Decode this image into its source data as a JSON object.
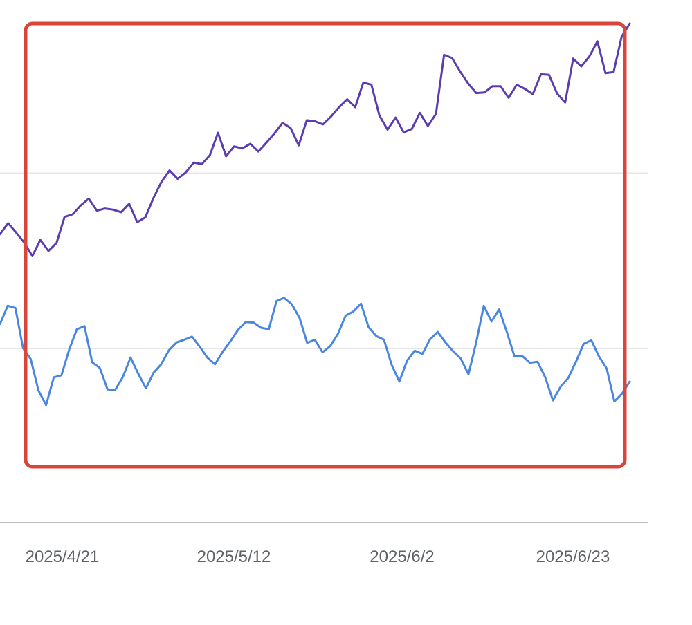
{
  "chart_data": {
    "type": "line",
    "title": "",
    "xlabel": "",
    "ylabel": "",
    "x_tick_labels": [
      "2025/4/21",
      "2025/5/12",
      "2025/6/2",
      "2025/6/23"
    ],
    "grid": true,
    "legend": "none",
    "series": [
      {
        "color": "#5b3db0",
        "values": [
          0.552,
          0.573,
          0.555,
          0.536,
          0.51,
          0.541,
          0.52,
          0.535,
          0.585,
          0.59,
          0.607,
          0.62,
          0.597,
          0.601,
          0.599,
          0.594,
          0.61,
          0.575,
          0.584,
          0.621,
          0.652,
          0.674,
          0.658,
          0.67,
          0.689,
          0.686,
          0.703,
          0.746,
          0.701,
          0.72,
          0.716,
          0.725,
          0.71,
          0.727,
          0.745,
          0.765,
          0.755,
          0.722,
          0.77,
          0.768,
          0.762,
          0.777,
          0.795,
          0.81,
          0.795,
          0.842,
          0.838,
          0.779,
          0.752,
          0.775,
          0.747,
          0.753,
          0.784,
          0.759,
          0.782,
          0.895,
          0.889,
          0.863,
          0.84,
          0.822,
          0.823,
          0.835,
          0.835,
          0.813,
          0.838,
          0.83,
          0.82,
          0.858,
          0.857,
          0.821,
          0.804,
          0.888,
          0.873,
          0.892,
          0.921,
          0.86,
          0.862,
          0.93,
          0.955
        ]
      },
      {
        "color": "#4a86e0",
        "values": [
          0.38,
          0.415,
          0.411,
          0.334,
          0.313,
          0.253,
          0.225,
          0.278,
          0.282,
          0.331,
          0.37,
          0.376,
          0.307,
          0.296,
          0.255,
          0.254,
          0.279,
          0.316,
          0.285,
          0.257,
          0.287,
          0.303,
          0.33,
          0.345,
          0.35,
          0.356,
          0.337,
          0.316,
          0.303,
          0.327,
          0.347,
          0.369,
          0.384,
          0.383,
          0.373,
          0.37,
          0.424,
          0.43,
          0.418,
          0.392,
          0.344,
          0.35,
          0.326,
          0.338,
          0.361,
          0.396,
          0.404,
          0.419,
          0.374,
          0.357,
          0.35,
          0.302,
          0.27,
          0.31,
          0.329,
          0.323,
          0.351,
          0.365,
          0.345,
          0.328,
          0.314,
          0.284,
          0.344,
          0.415,
          0.385,
          0.408,
          0.365,
          0.318,
          0.319,
          0.306,
          0.308,
          0.278,
          0.234,
          0.26,
          0.277,
          0.308,
          0.342,
          0.349,
          0.318,
          0.295,
          0.232,
          0.247,
          0.27
        ]
      }
    ]
  },
  "annotations": {
    "highlight_box_color": "#d9453a"
  }
}
